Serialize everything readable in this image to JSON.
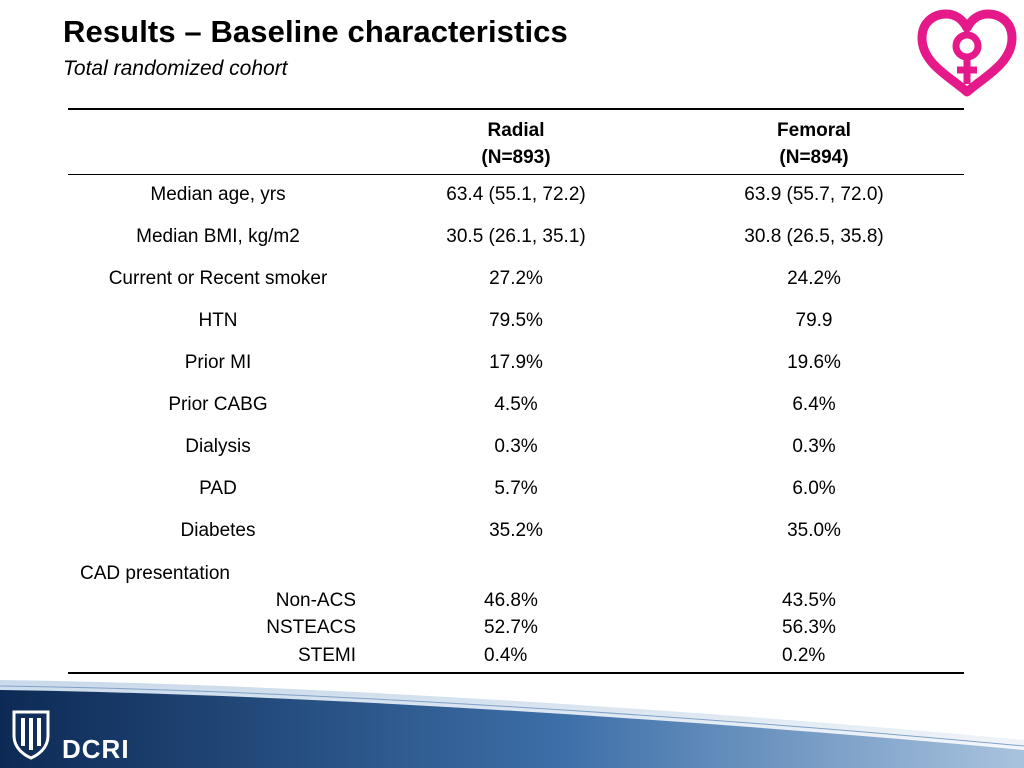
{
  "header": {
    "title": "Results – Baseline characteristics",
    "subtitle": "Total randomized cohort"
  },
  "table": {
    "columns": [
      {
        "name": "Radial",
        "n": "(N=893)"
      },
      {
        "name": "Femoral",
        "n": "(N=894)"
      }
    ],
    "rows": [
      {
        "label": "Median age, yrs",
        "radial": "63.4 (55.1, 72.2)",
        "femoral": "63.9 (55.7, 72.0)"
      },
      {
        "label": "Median BMI, kg/m2",
        "radial": "30.5 (26.1, 35.1)",
        "femoral": "30.8 (26.5, 35.8)"
      },
      {
        "label": "Current or Recent smoker",
        "radial": "27.2%",
        "femoral": "24.2%"
      },
      {
        "label": "HTN",
        "radial": "79.5%",
        "femoral": "79.9"
      },
      {
        "label": "Prior MI",
        "radial": "17.9%",
        "femoral": "19.6%"
      },
      {
        "label": "Prior CABG",
        "radial": "4.5%",
        "femoral": "6.4%"
      },
      {
        "label": "Dialysis",
        "radial": "0.3%",
        "femoral": "0.3%"
      },
      {
        "label": "PAD",
        "radial": "5.7%",
        "femoral": "6.0%"
      },
      {
        "label": "Diabetes",
        "radial": "35.2%",
        "femoral": "35.0%"
      }
    ],
    "cad": {
      "label": "CAD presentation",
      "rows": [
        {
          "label": "Non-ACS",
          "radial": "46.8%",
          "femoral": "43.5%"
        },
        {
          "label": "NSTEACS",
          "radial": "52.7%",
          "femoral": "56.3%"
        },
        {
          "label": "STEMI",
          "radial": "0.4%",
          "femoral": "0.2%"
        }
      ]
    }
  },
  "footer": {
    "brand": "DCRI"
  },
  "colors": {
    "logo": "#e6198a",
    "footer_dark": "#0d2a55",
    "footer_mid": "#3d6fa8",
    "footer_light": "#a9c3de"
  },
  "icons": {
    "logo": "heart-female-symbol-logo",
    "shield": "duke-shield-icon"
  }
}
